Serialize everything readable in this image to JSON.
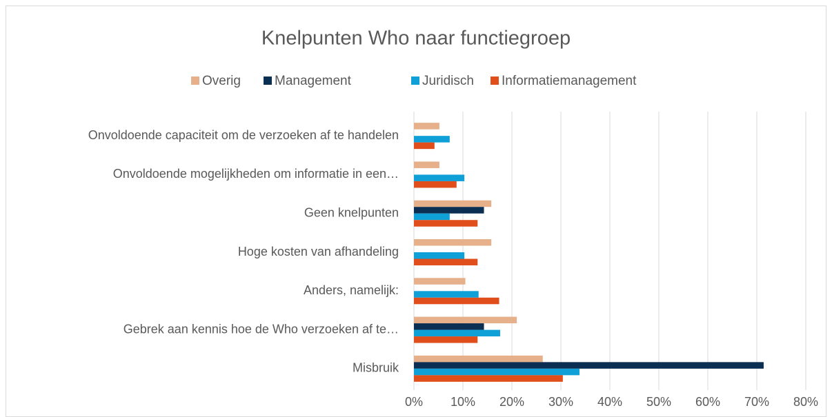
{
  "chart_data": {
    "type": "barh",
    "title": "Knelpunten Who naar functiegroep",
    "categories": [
      "Onvoldoende capaciteit om de verzoeken af te handelen",
      "Onvoldoende mogelijkheden om informatie in een…",
      "Geen knelpunten",
      "Hoge kosten van afhandeling",
      "Anders, namelijk:",
      "Gebrek aan kennis hoe de Who verzoeken af te…",
      "Misbruik"
    ],
    "series": [
      {
        "name": "Overig",
        "color": "#e6b08a",
        "values": [
          5.2,
          5.2,
          15.8,
          15.8,
          10.5,
          21.0,
          26.3
        ]
      },
      {
        "name": "Management",
        "color": "#0b2f52",
        "values": [
          0,
          0,
          14.3,
          0,
          0,
          14.3,
          71.4
        ]
      },
      {
        "name": "Juridisch",
        "color": "#0fa0d8",
        "values": [
          7.3,
          10.3,
          7.3,
          10.3,
          13.2,
          17.6,
          33.8
        ]
      },
      {
        "name": "Informatiemanagement",
        "color": "#e04e1b",
        "values": [
          4.2,
          8.7,
          13.0,
          13.0,
          17.4,
          13.0,
          30.4
        ]
      }
    ],
    "xlim": [
      0,
      80
    ],
    "xticks": [
      {
        "value": 0,
        "label": "0%"
      },
      {
        "value": 10,
        "label": "10%"
      },
      {
        "value": 20,
        "label": "20%"
      },
      {
        "value": 30,
        "label": "30%"
      },
      {
        "value": 40,
        "label": "40%"
      },
      {
        "value": 50,
        "label": "50%"
      },
      {
        "value": 60,
        "label": "60%"
      },
      {
        "value": 70,
        "label": "70%"
      },
      {
        "value": 80,
        "label": "80%"
      }
    ],
    "grid": true,
    "legend": "top"
  }
}
